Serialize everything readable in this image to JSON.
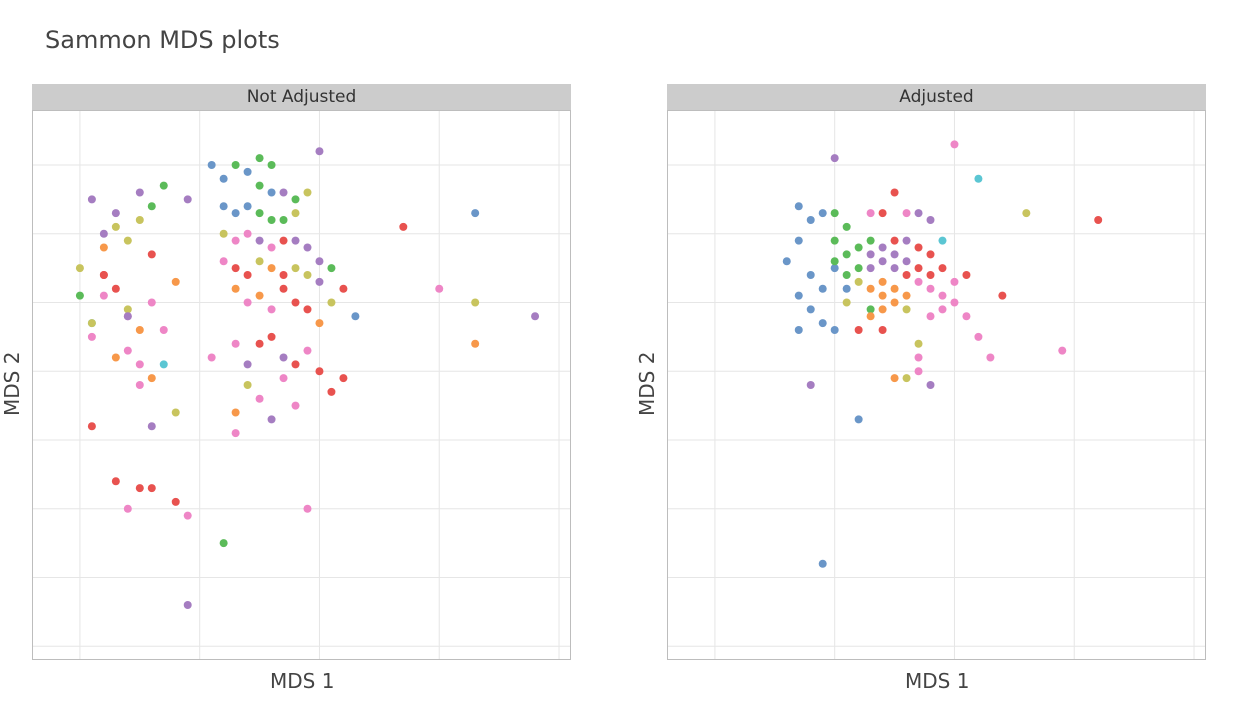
{
  "title": "Sammon MDS plots",
  "colors": {
    "red": "#e8524f",
    "blue": "#6a96c8",
    "green": "#5bbb59",
    "purple": "#a57dc1",
    "orange": "#f7984a",
    "pink": "#ee86c6",
    "olive": "#c8c45e",
    "cyan": "#5bc6d3"
  },
  "chart_data": [
    {
      "type": "scatter",
      "facet_label": "Not Adjusted",
      "xlabel": "MDS 1",
      "ylabel": "MDS 2",
      "grid": true,
      "xlim": [
        -0.4,
        4.1
      ],
      "ylim": [
        -5.2,
        2.8
      ],
      "points": [
        {
          "x": 0,
          "y": 0.5,
          "c": "olive"
        },
        {
          "x": 0.1,
          "y": -0.5,
          "c": "pink"
        },
        {
          "x": 0.1,
          "y": -0.3,
          "c": "cyan"
        },
        {
          "x": 0.1,
          "y": 1.5,
          "c": "purple"
        },
        {
          "x": 0.2,
          "y": 0.8,
          "c": "orange"
        },
        {
          "x": 0.2,
          "y": 1.0,
          "c": "purple"
        },
        {
          "x": 0.3,
          "y": 1.1,
          "c": "olive"
        },
        {
          "x": 0.3,
          "y": 1.3,
          "c": "purple"
        },
        {
          "x": 0.4,
          "y": -0.2,
          "c": "pink"
        },
        {
          "x": 0.4,
          "y": -0.7,
          "c": "pink"
        },
        {
          "x": 0.1,
          "y": -1.8,
          "c": "red"
        },
        {
          "x": 0.2,
          "y": 0.1,
          "c": "pink"
        },
        {
          "x": 0.3,
          "y": -0.8,
          "c": "orange"
        },
        {
          "x": 0.4,
          "y": 0.9,
          "c": "olive"
        },
        {
          "x": 0.5,
          "y": 1.2,
          "c": "olive"
        },
        {
          "x": 0.5,
          "y": 1.6,
          "c": "purple"
        },
        {
          "x": 0.6,
          "y": 0.7,
          "c": "red"
        },
        {
          "x": 0.7,
          "y": 1.7,
          "c": "green"
        },
        {
          "x": 0.6,
          "y": 1.4,
          "c": "green"
        },
        {
          "x": 0.7,
          "y": -0.4,
          "c": "pink"
        },
        {
          "x": 0.6,
          "y": -1.8,
          "c": "purple"
        },
        {
          "x": 0.8,
          "y": 0.3,
          "c": "orange"
        },
        {
          "x": 0.4,
          "y": -3.0,
          "c": "pink"
        },
        {
          "x": 0.3,
          "y": -2.6,
          "c": "red"
        },
        {
          "x": 0.5,
          "y": -2.7,
          "c": "red"
        },
        {
          "x": 0.6,
          "y": -2.7,
          "c": "red"
        },
        {
          "x": 0.8,
          "y": -2.9,
          "c": "red"
        },
        {
          "x": 0.9,
          "y": -3.1,
          "c": "pink"
        },
        {
          "x": 0.8,
          "y": -1.6,
          "c": "olive"
        },
        {
          "x": 0.9,
          "y": -4.4,
          "c": "purple"
        },
        {
          "x": 0.0,
          "y": 0.1,
          "c": "green"
        },
        {
          "x": 0.2,
          "y": 0.4,
          "c": "red"
        },
        {
          "x": 0.3,
          "y": 0.2,
          "c": "red"
        },
        {
          "x": 0.4,
          "y": -0.1,
          "c": "olive"
        },
        {
          "x": 0.5,
          "y": -0.4,
          "c": "orange"
        },
        {
          "x": 0.6,
          "y": 0.0,
          "c": "pink"
        },
        {
          "x": 0.5,
          "y": -1.2,
          "c": "pink"
        },
        {
          "x": 0.7,
          "y": -0.9,
          "c": "cyan"
        },
        {
          "x": 0.9,
          "y": 1.5,
          "c": "purple"
        },
        {
          "x": 0.2,
          "y": 0.4,
          "c": "red"
        },
        {
          "x": 0.1,
          "y": -0.3,
          "c": "olive"
        },
        {
          "x": 0.4,
          "y": -0.2,
          "c": "purple"
        },
        {
          "x": 0.5,
          "y": -0.9,
          "c": "pink"
        },
        {
          "x": 0.6,
          "y": -1.1,
          "c": "orange"
        },
        {
          "x": 1.1,
          "y": 2.0,
          "c": "blue"
        },
        {
          "x": 1.2,
          "y": 1.8,
          "c": "blue"
        },
        {
          "x": 1.3,
          "y": 2.0,
          "c": "green"
        },
        {
          "x": 1.5,
          "y": 2.1,
          "c": "green"
        },
        {
          "x": 1.6,
          "y": 2.0,
          "c": "green"
        },
        {
          "x": 1.4,
          "y": 1.9,
          "c": "blue"
        },
        {
          "x": 1.5,
          "y": 1.7,
          "c": "green"
        },
        {
          "x": 1.6,
          "y": 1.6,
          "c": "blue"
        },
        {
          "x": 1.7,
          "y": 1.6,
          "c": "purple"
        },
        {
          "x": 1.8,
          "y": 1.5,
          "c": "green"
        },
        {
          "x": 1.9,
          "y": 1.6,
          "c": "olive"
        },
        {
          "x": 2.0,
          "y": 2.2,
          "c": "purple"
        },
        {
          "x": 1.2,
          "y": 1.4,
          "c": "blue"
        },
        {
          "x": 1.3,
          "y": 1.3,
          "c": "blue"
        },
        {
          "x": 1.4,
          "y": 1.4,
          "c": "blue"
        },
        {
          "x": 1.5,
          "y": 1.3,
          "c": "green"
        },
        {
          "x": 1.6,
          "y": 1.2,
          "c": "green"
        },
        {
          "x": 1.7,
          "y": 1.2,
          "c": "green"
        },
        {
          "x": 1.8,
          "y": 1.3,
          "c": "olive"
        },
        {
          "x": 1.2,
          "y": 1.0,
          "c": "olive"
        },
        {
          "x": 1.3,
          "y": 0.9,
          "c": "pink"
        },
        {
          "x": 1.4,
          "y": 1.0,
          "c": "pink"
        },
        {
          "x": 1.5,
          "y": 0.9,
          "c": "purple"
        },
        {
          "x": 1.6,
          "y": 0.8,
          "c": "pink"
        },
        {
          "x": 1.7,
          "y": 0.9,
          "c": "red"
        },
        {
          "x": 1.8,
          "y": 0.9,
          "c": "purple"
        },
        {
          "x": 1.9,
          "y": 0.8,
          "c": "purple"
        },
        {
          "x": 2.0,
          "y": 0.6,
          "c": "purple"
        },
        {
          "x": 1.2,
          "y": 0.6,
          "c": "pink"
        },
        {
          "x": 1.3,
          "y": 0.5,
          "c": "red"
        },
        {
          "x": 1.4,
          "y": 0.4,
          "c": "red"
        },
        {
          "x": 1.5,
          "y": 0.6,
          "c": "olive"
        },
        {
          "x": 1.6,
          "y": 0.5,
          "c": "orange"
        },
        {
          "x": 1.7,
          "y": 0.4,
          "c": "red"
        },
        {
          "x": 1.8,
          "y": 0.5,
          "c": "olive"
        },
        {
          "x": 1.9,
          "y": 0.4,
          "c": "olive"
        },
        {
          "x": 2.0,
          "y": 0.3,
          "c": "purple"
        },
        {
          "x": 2.1,
          "y": 0.5,
          "c": "green"
        },
        {
          "x": 2.2,
          "y": 0.2,
          "c": "red"
        },
        {
          "x": 1.3,
          "y": 0.2,
          "c": "orange"
        },
        {
          "x": 1.4,
          "y": 0.0,
          "c": "pink"
        },
        {
          "x": 1.5,
          "y": 0.1,
          "c": "orange"
        },
        {
          "x": 1.6,
          "y": -0.1,
          "c": "pink"
        },
        {
          "x": 1.7,
          "y": 0.2,
          "c": "red"
        },
        {
          "x": 1.8,
          "y": 0.0,
          "c": "red"
        },
        {
          "x": 1.9,
          "y": -0.1,
          "c": "red"
        },
        {
          "x": 2.0,
          "y": -0.3,
          "c": "orange"
        },
        {
          "x": 2.1,
          "y": 0.0,
          "c": "olive"
        },
        {
          "x": 2.3,
          "y": -0.2,
          "c": "blue"
        },
        {
          "x": 1.1,
          "y": -0.8,
          "c": "pink"
        },
        {
          "x": 1.3,
          "y": -0.6,
          "c": "pink"
        },
        {
          "x": 1.4,
          "y": -0.9,
          "c": "purple"
        },
        {
          "x": 1.5,
          "y": -0.6,
          "c": "red"
        },
        {
          "x": 1.6,
          "y": -0.5,
          "c": "red"
        },
        {
          "x": 1.7,
          "y": -0.8,
          "c": "purple"
        },
        {
          "x": 1.8,
          "y": -0.9,
          "c": "red"
        },
        {
          "x": 1.9,
          "y": -0.7,
          "c": "pink"
        },
        {
          "x": 2.0,
          "y": -1.0,
          "c": "red"
        },
        {
          "x": 1.7,
          "y": -1.1,
          "c": "pink"
        },
        {
          "x": 1.5,
          "y": -1.4,
          "c": "pink"
        },
        {
          "x": 1.8,
          "y": -1.5,
          "c": "pink"
        },
        {
          "x": 1.3,
          "y": -1.6,
          "c": "orange"
        },
        {
          "x": 2.1,
          "y": -1.3,
          "c": "red"
        },
        {
          "x": 2.2,
          "y": -1.1,
          "c": "red"
        },
        {
          "x": 1.9,
          "y": -3.0,
          "c": "pink"
        },
        {
          "x": 1.2,
          "y": -3.5,
          "c": "green"
        },
        {
          "x": 1.3,
          "y": -1.9,
          "c": "pink"
        },
        {
          "x": 1.6,
          "y": -1.7,
          "c": "purple"
        },
        {
          "x": 1.4,
          "y": -1.2,
          "c": "olive"
        },
        {
          "x": 2.7,
          "y": 1.1,
          "c": "red"
        },
        {
          "x": 3.0,
          "y": 0.2,
          "c": "pink"
        },
        {
          "x": 3.3,
          "y": 1.3,
          "c": "blue"
        },
        {
          "x": 3.3,
          "y": 0.0,
          "c": "olive"
        },
        {
          "x": 3.3,
          "y": -0.6,
          "c": "orange"
        },
        {
          "x": 3.8,
          "y": -0.2,
          "c": "purple"
        }
      ]
    },
    {
      "type": "scatter",
      "facet_label": "Adjusted",
      "xlabel": "MDS 1",
      "ylabel": "MDS 2",
      "grid": true,
      "xlim": [
        -0.4,
        4.1
      ],
      "ylim": [
        -5.2,
        2.8
      ],
      "points": [
        {
          "x": 0.7,
          "y": 1.4,
          "c": "blue"
        },
        {
          "x": 0.8,
          "y": 1.2,
          "c": "blue"
        },
        {
          "x": 0.9,
          "y": 1.3,
          "c": "blue"
        },
        {
          "x": 0.7,
          "y": 0.9,
          "c": "blue"
        },
        {
          "x": 0.6,
          "y": 0.6,
          "c": "blue"
        },
        {
          "x": 0.8,
          "y": 0.4,
          "c": "blue"
        },
        {
          "x": 0.9,
          "y": 0.2,
          "c": "blue"
        },
        {
          "x": 0.7,
          "y": 0.1,
          "c": "blue"
        },
        {
          "x": 0.8,
          "y": -0.1,
          "c": "blue"
        },
        {
          "x": 0.7,
          "y": -0.4,
          "c": "blue"
        },
        {
          "x": 0.9,
          "y": -0.3,
          "c": "blue"
        },
        {
          "x": 1.0,
          "y": 0.5,
          "c": "blue"
        },
        {
          "x": 1.1,
          "y": 0.2,
          "c": "blue"
        },
        {
          "x": 1.0,
          "y": -0.4,
          "c": "blue"
        },
        {
          "x": 0.8,
          "y": -1.2,
          "c": "purple"
        },
        {
          "x": 1.0,
          "y": 1.3,
          "c": "green"
        },
        {
          "x": 1.1,
          "y": 1.1,
          "c": "green"
        },
        {
          "x": 1.0,
          "y": 0.9,
          "c": "green"
        },
        {
          "x": 1.1,
          "y": 0.7,
          "c": "green"
        },
        {
          "x": 1.2,
          "y": 0.8,
          "c": "green"
        },
        {
          "x": 1.0,
          "y": 0.6,
          "c": "green"
        },
        {
          "x": 1.1,
          "y": 0.4,
          "c": "green"
        },
        {
          "x": 1.2,
          "y": 0.5,
          "c": "green"
        },
        {
          "x": 1.3,
          "y": 0.9,
          "c": "green"
        },
        {
          "x": 1.2,
          "y": 0.3,
          "c": "olive"
        },
        {
          "x": 1.1,
          "y": 0.0,
          "c": "olive"
        },
        {
          "x": 1.3,
          "y": -0.1,
          "c": "green"
        },
        {
          "x": 1.3,
          "y": 0.7,
          "c": "purple"
        },
        {
          "x": 1.4,
          "y": 0.8,
          "c": "purple"
        },
        {
          "x": 1.5,
          "y": 0.7,
          "c": "purple"
        },
        {
          "x": 1.4,
          "y": 0.6,
          "c": "purple"
        },
        {
          "x": 1.5,
          "y": 0.5,
          "c": "purple"
        },
        {
          "x": 1.6,
          "y": 0.6,
          "c": "purple"
        },
        {
          "x": 1.3,
          "y": 0.5,
          "c": "purple"
        },
        {
          "x": 1.6,
          "y": 0.9,
          "c": "purple"
        },
        {
          "x": 1.5,
          "y": 0.9,
          "c": "red"
        },
        {
          "x": 1.7,
          "y": 0.8,
          "c": "red"
        },
        {
          "x": 1.8,
          "y": 0.7,
          "c": "red"
        },
        {
          "x": 1.6,
          "y": 0.4,
          "c": "red"
        },
        {
          "x": 1.7,
          "y": 0.5,
          "c": "red"
        },
        {
          "x": 1.8,
          "y": 0.4,
          "c": "red"
        },
        {
          "x": 1.9,
          "y": 0.5,
          "c": "red"
        },
        {
          "x": 1.5,
          "y": 1.6,
          "c": "red"
        },
        {
          "x": 1.4,
          "y": 1.3,
          "c": "red"
        },
        {
          "x": 1.6,
          "y": 1.3,
          "c": "pink"
        },
        {
          "x": 1.7,
          "y": 1.3,
          "c": "purple"
        },
        {
          "x": 1.8,
          "y": 1.2,
          "c": "purple"
        },
        {
          "x": 1.3,
          "y": 1.3,
          "c": "pink"
        },
        {
          "x": 1.3,
          "y": 0.2,
          "c": "orange"
        },
        {
          "x": 1.4,
          "y": 0.1,
          "c": "orange"
        },
        {
          "x": 1.5,
          "y": 0.0,
          "c": "orange"
        },
        {
          "x": 1.4,
          "y": -0.1,
          "c": "orange"
        },
        {
          "x": 1.3,
          "y": -0.2,
          "c": "orange"
        },
        {
          "x": 1.5,
          "y": 0.2,
          "c": "orange"
        },
        {
          "x": 1.6,
          "y": 0.1,
          "c": "orange"
        },
        {
          "x": 1.4,
          "y": 0.3,
          "c": "orange"
        },
        {
          "x": 1.6,
          "y": -0.1,
          "c": "olive"
        },
        {
          "x": 1.7,
          "y": 0.3,
          "c": "pink"
        },
        {
          "x": 1.8,
          "y": 0.2,
          "c": "pink"
        },
        {
          "x": 1.9,
          "y": 0.1,
          "c": "pink"
        },
        {
          "x": 2.0,
          "y": 0.3,
          "c": "pink"
        },
        {
          "x": 2.0,
          "y": 0.0,
          "c": "pink"
        },
        {
          "x": 1.9,
          "y": -0.1,
          "c": "pink"
        },
        {
          "x": 1.8,
          "y": -0.2,
          "c": "pink"
        },
        {
          "x": 2.1,
          "y": -0.2,
          "c": "pink"
        },
        {
          "x": 2.2,
          "y": -0.5,
          "c": "pink"
        },
        {
          "x": 2.1,
          "y": 0.4,
          "c": "red"
        },
        {
          "x": 2.4,
          "y": 0.1,
          "c": "red"
        },
        {
          "x": 1.9,
          "y": 0.9,
          "c": "cyan"
        },
        {
          "x": 2.3,
          "y": -0.8,
          "c": "pink"
        },
        {
          "x": 1.4,
          "y": -0.4,
          "c": "red"
        },
        {
          "x": 1.2,
          "y": -0.4,
          "c": "red"
        },
        {
          "x": 1.7,
          "y": -0.6,
          "c": "olive"
        },
        {
          "x": 1.7,
          "y": -0.8,
          "c": "pink"
        },
        {
          "x": 1.5,
          "y": -1.1,
          "c": "orange"
        },
        {
          "x": 1.6,
          "y": -1.1,
          "c": "olive"
        },
        {
          "x": 1.8,
          "y": -1.2,
          "c": "purple"
        },
        {
          "x": 1.0,
          "y": 2.1,
          "c": "purple"
        },
        {
          "x": 2.0,
          "y": 2.3,
          "c": "pink"
        },
        {
          "x": 2.2,
          "y": 1.8,
          "c": "cyan"
        },
        {
          "x": 2.6,
          "y": 1.3,
          "c": "olive"
        },
        {
          "x": 3.2,
          "y": 1.2,
          "c": "red"
        },
        {
          "x": 2.9,
          "y": -0.7,
          "c": "pink"
        },
        {
          "x": 1.2,
          "y": -1.7,
          "c": "blue"
        },
        {
          "x": 0.9,
          "y": -3.8,
          "c": "blue"
        },
        {
          "x": 1.7,
          "y": -1.0,
          "c": "pink"
        }
      ]
    }
  ]
}
